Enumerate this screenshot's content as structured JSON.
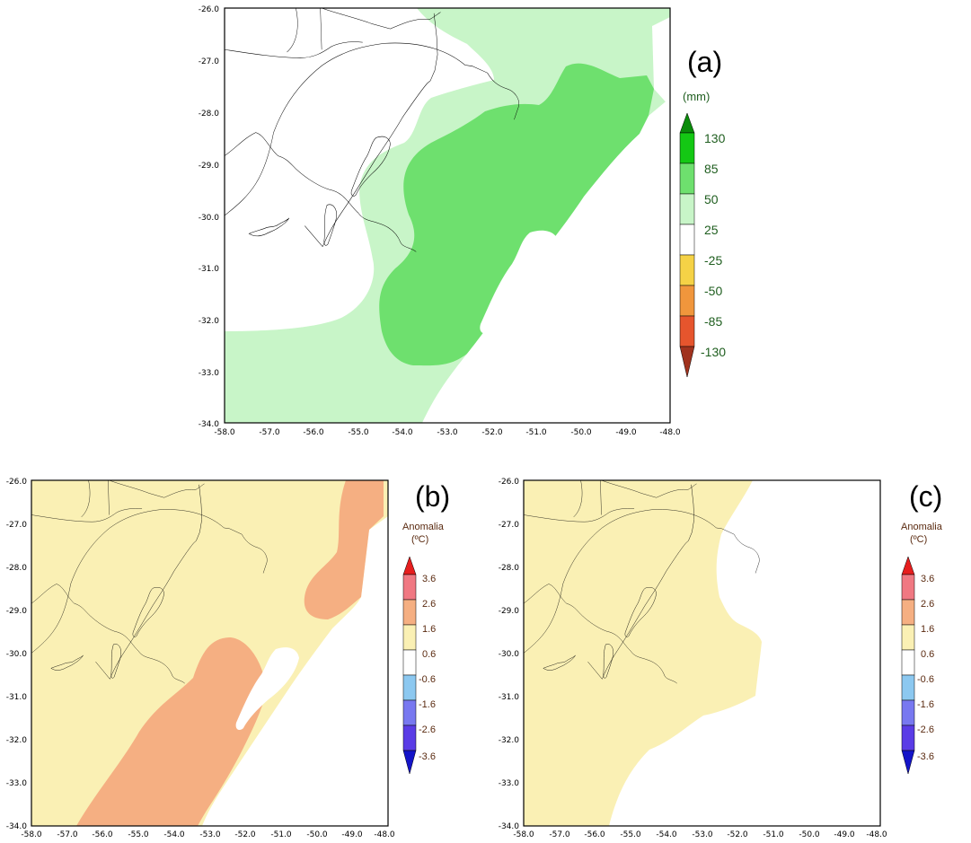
{
  "panels": [
    {
      "id": "a",
      "label": "(a)",
      "legend_unit": "(mm)",
      "legend_levels": [
        "130",
        "85",
        "50",
        "25",
        "-25",
        "-50",
        "-85",
        "-130"
      ],
      "colors": {
        "light_green": "#c8f5c8",
        "mid_green": "#6ee06e",
        "dark_green": "#14c814",
        "darker_green": "#0a8c0a",
        "yellow": "#f5d246",
        "orange": "#f0963c",
        "red_orange": "#e6552d",
        "dark_red": "#a0321e"
      }
    },
    {
      "id": "b",
      "label": "(b)",
      "legend_unit_line1": "Anomalia",
      "legend_unit_line2": "(ºC)",
      "legend_levels": [
        "3.6",
        "2.6",
        "1.6",
        "0.6",
        "-0.6",
        "-1.6",
        "-2.6",
        "-3.6"
      ],
      "colors": {
        "pale_yellow": "#faf0b4",
        "salmon": "#f5af82",
        "pink": "#f07882",
        "red": "#e61e1e",
        "light_blue": "#8cc8f0",
        "blue_violet": "#7878f0",
        "violet": "#5a3ce6",
        "blue": "#1414c8"
      }
    },
    {
      "id": "c",
      "label": "(c)",
      "legend_unit_line1": "Anomalia",
      "legend_unit_line2": "(ºC)",
      "legend_levels": [
        "3.6",
        "2.6",
        "1.6",
        "0.6",
        "-0.6",
        "-1.6",
        "-2.6",
        "-3.6"
      ]
    }
  ],
  "axes": {
    "lon_ticks": [
      "-58.0",
      "-57.0",
      "-56.0",
      "-55.0",
      "-54.0",
      "-53.0",
      "-52.0",
      "-51.0",
      "-50.0",
      "-49.0",
      "-48.0"
    ],
    "lat_ticks": [
      "-26.0",
      "-27.0",
      "-28.0",
      "-29.0",
      "-30.0",
      "-31.0",
      "-32.0",
      "-33.0",
      "-34.0"
    ],
    "lon_range": [
      -58.0,
      -48.0
    ],
    "lat_range": [
      -34.0,
      -26.0
    ]
  }
}
